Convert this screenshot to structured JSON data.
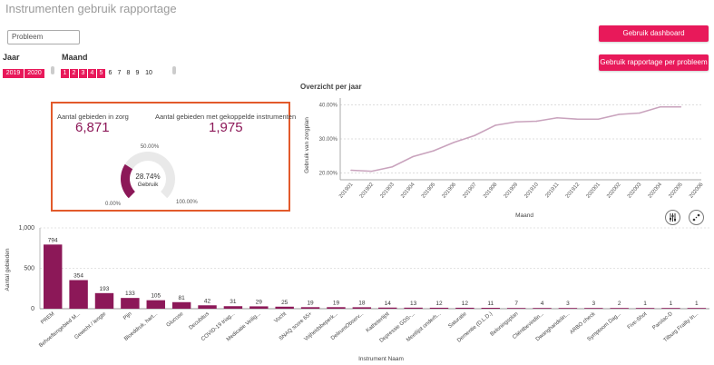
{
  "header": {
    "title": "Instrumenten gebruik rapportage"
  },
  "filters": {
    "search_value": "Probleem",
    "jaar_label": "Jaar",
    "maand_label": "Maand",
    "years": [
      {
        "label": "2019",
        "selected": true
      },
      {
        "label": "2020",
        "selected": true
      }
    ],
    "months": [
      {
        "label": "1",
        "selected": true
      },
      {
        "label": "2",
        "selected": true
      },
      {
        "label": "3",
        "selected": true
      },
      {
        "label": "4",
        "selected": true
      },
      {
        "label": "5",
        "selected": true
      },
      {
        "label": "6",
        "selected": false
      },
      {
        "label": "7",
        "selected": false
      },
      {
        "label": "8",
        "selected": false
      },
      {
        "label": "9",
        "selected": false
      },
      {
        "label": "10",
        "selected": false
      }
    ]
  },
  "buttons": {
    "dashboard": "Gebruik dashboard",
    "rapportage": "Gebruik rapportage per probleem"
  },
  "kpis": {
    "zorg_label": "Aantal gebieden in zorg",
    "zorg_value": "6,871",
    "gekoppeld_label": "Aantal gebieden met gekoppelde instrumenten",
    "gekoppeld_value": "1,975"
  },
  "gauge": {
    "value_pct": 28.74,
    "value_text": "28.74%",
    "caption": "Gebruik",
    "min_label": "0.00%",
    "mid_label": "50.00%",
    "max_label": "100.00%"
  },
  "colors": {
    "accent": "#e8195a",
    "bar": "#8c1858",
    "line": "#c9a3bd",
    "kpi_border": "#e25a2b"
  },
  "icons": {
    "adjust": "sliders-icon",
    "expand": "expand-icon"
  },
  "chart_data": [
    {
      "type": "line",
      "title": "Overzicht per jaar",
      "xlabel": "Maand",
      "ylabel": "Gebruik van zorgplan",
      "x": [
        "201901",
        "201902",
        "201903",
        "201904",
        "201905",
        "201906",
        "201907",
        "201908",
        "201909",
        "201910",
        "201911",
        "201912",
        "202001",
        "202002",
        "202003",
        "202004",
        "202005",
        "202006"
      ],
      "series": [
        {
          "values": [
            20.8,
            20.5,
            21.8,
            24.8,
            26.5,
            29.0,
            31.0,
            34.0,
            35.0,
            35.2,
            36.2,
            35.8,
            35.8,
            37.2,
            37.6,
            39.4,
            39.4,
            null
          ]
        }
      ],
      "yticks": [
        "20.00%",
        "30.00%",
        "40.00%"
      ],
      "ylim": [
        18,
        42
      ],
      "grid": true
    },
    {
      "type": "bar",
      "xlabel": "Instrument Naam",
      "ylabel": "Aantal gebieden",
      "yticks": [
        "0",
        "500",
        "1,000"
      ],
      "ylim": [
        0,
        1000
      ],
      "categories": [
        "PREM",
        "Behoeftengebied M...",
        "Gewicht / lengte",
        "Pijn",
        "Bloeddruk, hart...",
        "Glucose",
        "Decubitus",
        "COVID-19 triag...",
        "Medicatie Veilig...",
        "Vocht",
        "SNAQ score 65+",
        "Vrijheidsbeperk...",
        "DelirumObserv...",
        "Katheterlijst",
        "Depressie GDS-...",
        "Meetlijst onderh...",
        "Saturatie",
        "Dementie (D.L.D.)",
        "Beloningsplan",
        "Cliëntbevindin...",
        "Dwanghandelin...",
        "ARBO check",
        "Symptoom Dag...",
        "Five-Shot",
        "Parolac-D",
        "Tilburg Frailty In..."
      ],
      "values": [
        794,
        354,
        193,
        133,
        105,
        81,
        42,
        31,
        29,
        25,
        19,
        19,
        18,
        14,
        13,
        12,
        12,
        11,
        7,
        4,
        3,
        3,
        2,
        1,
        1,
        1
      ],
      "value_labels": [
        "794",
        "354",
        "193",
        "133",
        "105",
        "81",
        "42",
        "31",
        "29",
        "25",
        "19",
        "19",
        "18",
        "14",
        "13",
        "12",
        "12",
        "11",
        "7",
        "4",
        "3",
        "3",
        "2",
        "1",
        "1",
        "1"
      ]
    }
  ]
}
